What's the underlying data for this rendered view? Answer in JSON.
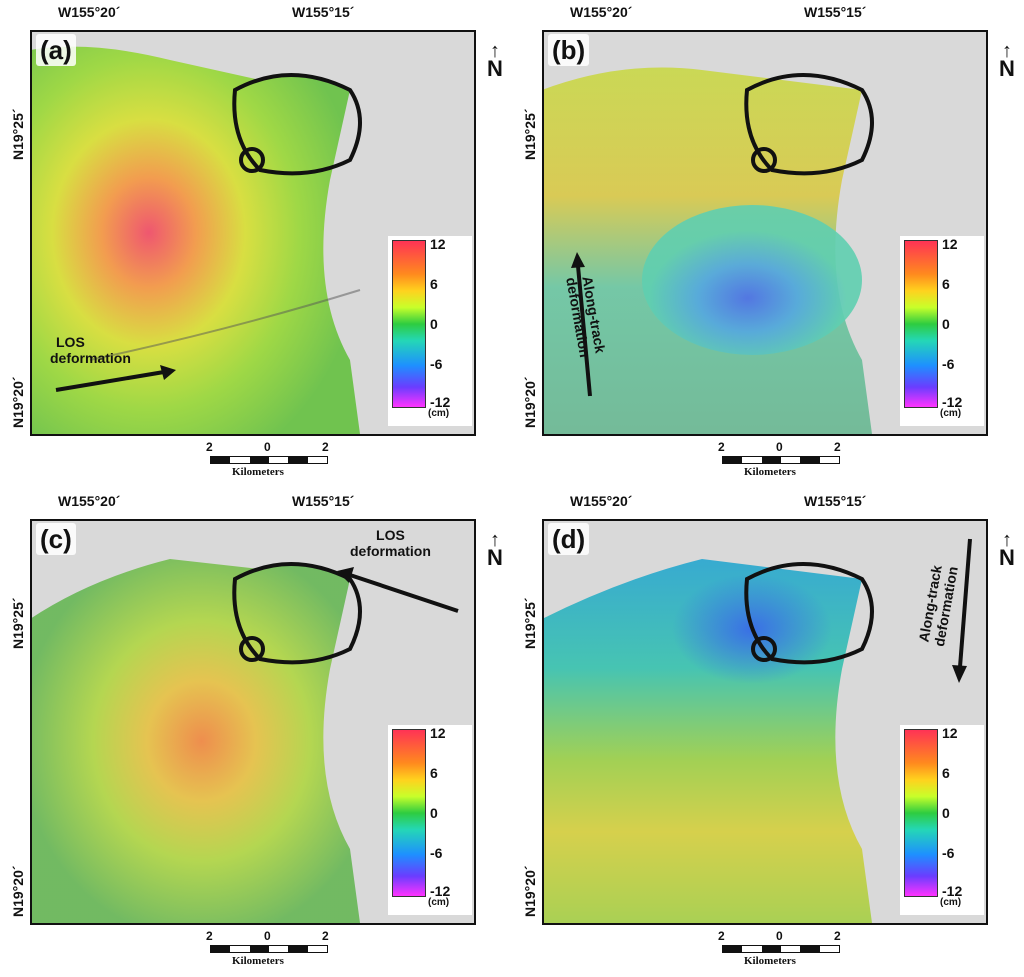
{
  "lon_labels": [
    "W155°20´",
    "W155°15´"
  ],
  "lat_labels": [
    "N19°25´",
    "N19°20´"
  ],
  "north": {
    "arrow": "↑",
    "letter": "N"
  },
  "scale": {
    "ticks": [
      "2",
      "0",
      "2"
    ],
    "unit": "Kilometers"
  },
  "colorbar": {
    "ticks": [
      "12",
      "6",
      "0",
      "-6",
      "-12"
    ],
    "unit": "(cm)",
    "range_cm": [
      -12,
      12
    ]
  },
  "panels": [
    {
      "label": "(a)",
      "annotation": [
        "LOS",
        "deformation"
      ]
    },
    {
      "label": "(b)",
      "annotation": [
        "Along-track",
        "deformation"
      ]
    },
    {
      "label": "(c)",
      "annotation": [
        "LOS",
        "deformation"
      ]
    },
    {
      "label": "(d)",
      "annotation": [
        "Along-track",
        "deformation"
      ]
    }
  ]
}
